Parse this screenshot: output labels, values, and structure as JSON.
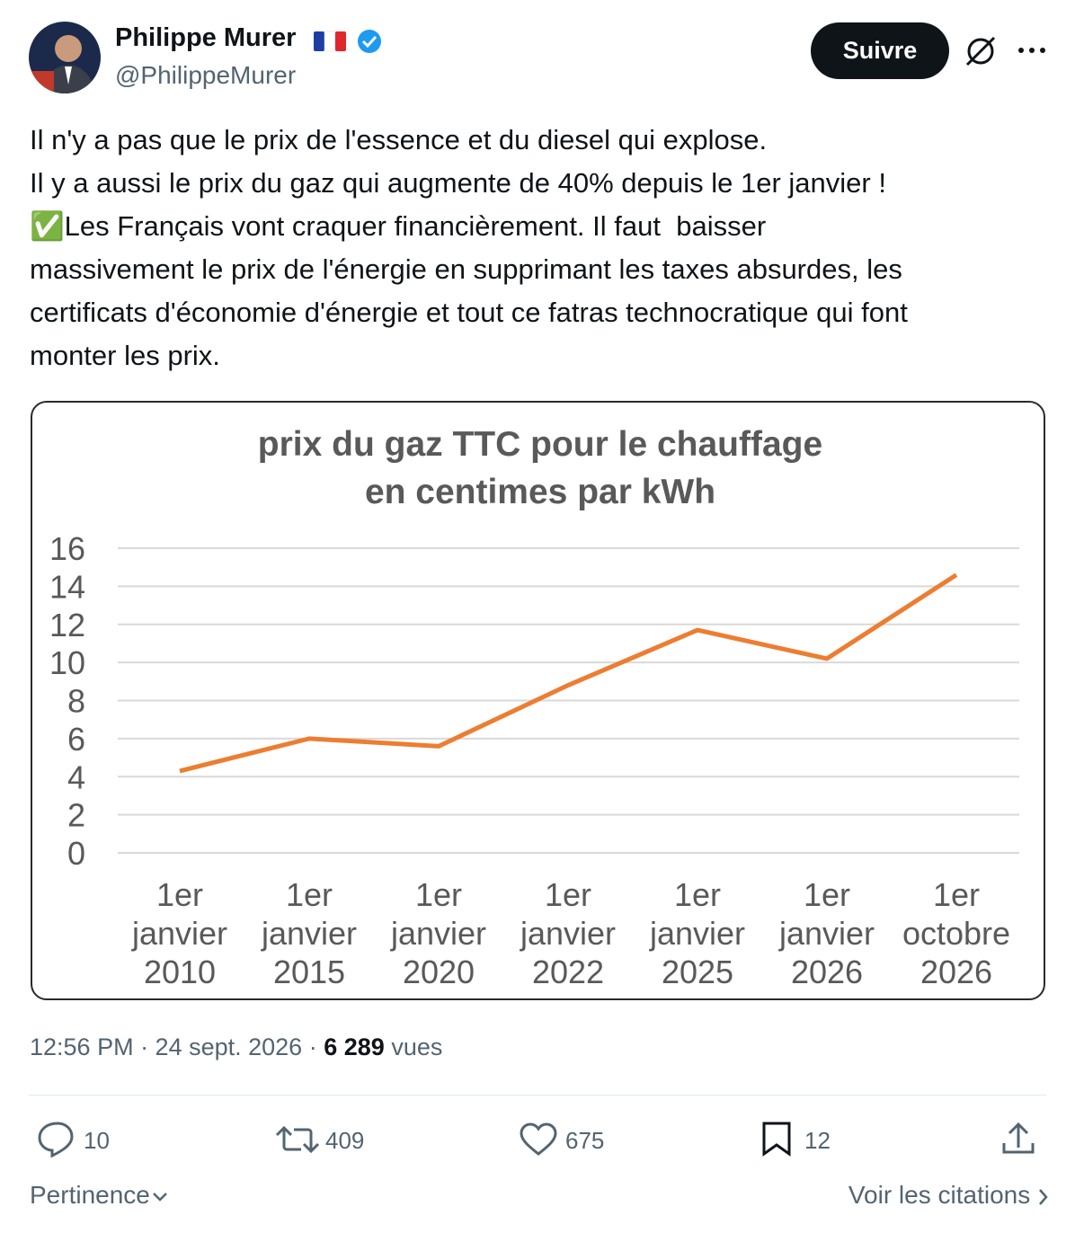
{
  "author": {
    "name": "Philippe Murer",
    "handle": "@PhilippeMurer"
  },
  "follow_button": "Suivre",
  "text": [
    "Il n'y a pas que le prix de l'essence et du diesel qui explose.",
    "Il y a aussi le prix du gaz qui augmente de 40% depuis le 1er janvier !",
    "✅Les Français vont craquer financièrement. Il faut  baisser",
    "massivement le prix de l'énergie en supprimant les taxes absurdes, les",
    "certificats d'économie d'énergie et tout ce fatras technocratique qui font",
    "monter les prix."
  ],
  "chart_data": {
    "type": "line",
    "title": [
      "prix du gaz TTC pour le chauffage",
      "en centimes par kWh"
    ],
    "categories": [
      "1er janvier 2010",
      "1er janvier 2015",
      "1er janvier 2020",
      "1er janvier 2022",
      "1er janvier 2025",
      "1er janvier 2026",
      "1er octobre 2026"
    ],
    "values": [
      4.3,
      6.0,
      5.6,
      8.8,
      11.7,
      10.2,
      14.6
    ],
    "color": "#ed7d31",
    "ylim": [
      0,
      16
    ],
    "yticks": [
      0,
      2,
      4,
      6,
      8,
      10,
      12,
      14,
      16
    ],
    "grid": true
  },
  "meta": {
    "timestamp": "12:56 PM · 24 sept. 2026 ·",
    "views": "6 289",
    "views_label": "vues"
  },
  "actions": {
    "replies": 10,
    "retweets": 409,
    "likes": 675,
    "bookmarks": 12
  },
  "footer": {
    "sort": "Pertinence",
    "quotes": "Voir les citations"
  }
}
